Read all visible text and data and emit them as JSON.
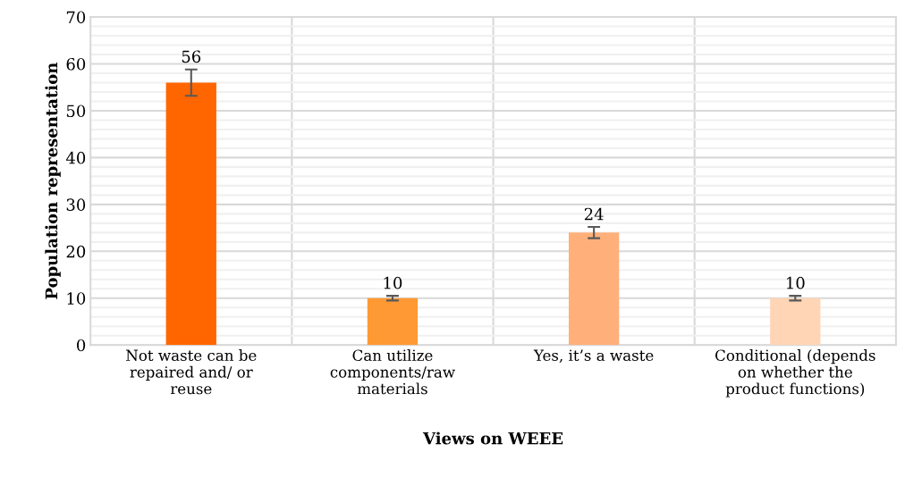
{
  "chart_data": {
    "type": "bar",
    "xlabel": "Views on WEEE",
    "ylabel": "Population representation",
    "categories": [
      "Not waste can be\nrepaired and/ or\nreuse",
      "Can utilize\ncomponents/raw\nmaterials",
      "Yes, it’s a waste",
      "Conditional (depends\non whether the\nproduct functions)"
    ],
    "values": [
      56,
      10,
      24,
      10
    ],
    "colors": [
      "#ff6600",
      "#ff9933",
      "#ffb07a",
      "#ffd5b5"
    ],
    "errors": [
      2.8,
      0.5,
      1.2,
      0.5
    ],
    "data_labels": true,
    "ylim": [
      0,
      70
    ],
    "yticks": [
      0,
      10,
      20,
      30,
      40,
      50,
      60,
      70
    ],
    "grid": true
  }
}
